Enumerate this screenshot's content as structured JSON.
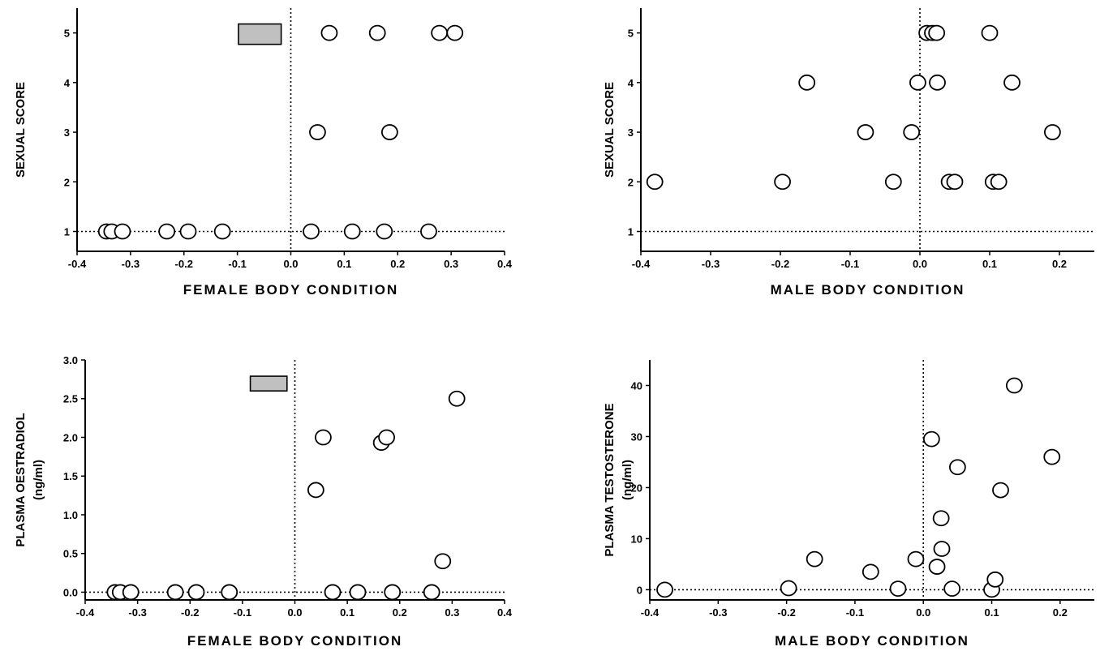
{
  "chart_data": [
    {
      "type": "scatter",
      "title": "",
      "xlabel": "FEMALE BODY CONDITION",
      "ylabel": [
        "SEXUAL SCORE"
      ],
      "xlim": [
        -0.4,
        0.4
      ],
      "ylim": [
        0.6,
        5.5
      ],
      "xticks": [
        -0.4,
        -0.3,
        -0.2,
        -0.1,
        0.0,
        0.1,
        0.2,
        0.3,
        0.4
      ],
      "xtick_labels": [
        "-0.4",
        "-0.3",
        "-0.2",
        "-0.1",
        "0.0",
        "0.1",
        "0.2",
        "0.3",
        "0.4"
      ],
      "yticks": [
        1,
        2,
        3,
        4,
        5
      ],
      "ytick_labels": [
        "1",
        "2",
        "3",
        "4",
        "5"
      ],
      "reference_lines": {
        "x": 0,
        "y": 1,
        "style": "dotted"
      },
      "marker_box": {
        "x": [
          -0.098,
          -0.018
        ],
        "y": [
          4.77,
          5.18
        ],
        "color": "#c0c0c0"
      },
      "points": [
        {
          "x": -0.345,
          "y": 1
        },
        {
          "x": -0.335,
          "y": 1
        },
        {
          "x": -0.315,
          "y": 1
        },
        {
          "x": -0.232,
          "y": 1
        },
        {
          "x": -0.192,
          "y": 1
        },
        {
          "x": -0.128,
          "y": 1
        },
        {
          "x": 0.038,
          "y": 1
        },
        {
          "x": 0.115,
          "y": 1
        },
        {
          "x": 0.175,
          "y": 1
        },
        {
          "x": 0.258,
          "y": 1
        },
        {
          "x": 0.05,
          "y": 3
        },
        {
          "x": 0.185,
          "y": 3
        },
        {
          "x": 0.072,
          "y": 5
        },
        {
          "x": 0.162,
          "y": 5
        },
        {
          "x": 0.278,
          "y": 5
        },
        {
          "x": 0.307,
          "y": 5
        }
      ]
    },
    {
      "type": "scatter",
      "title": "",
      "xlabel": "MALE BODY CONDITION",
      "ylabel": [
        "SEXUAL SCORE"
      ],
      "xlim": [
        -0.4,
        0.25
      ],
      "ylim": [
        0.6,
        5.5
      ],
      "xticks": [
        -0.4,
        -0.3,
        -0.2,
        -0.1,
        0.0,
        0.1,
        0.2
      ],
      "xtick_labels": [
        "-0.4",
        "-0.3",
        "-0.2",
        "-0.1",
        "0.0",
        "0.1",
        "0.2"
      ],
      "yticks": [
        1,
        2,
        3,
        4,
        5
      ],
      "ytick_labels": [
        "1",
        "2",
        "3",
        "4",
        "5"
      ],
      "reference_lines": {
        "x": 0,
        "y": 1,
        "style": "dotted"
      },
      "points": [
        {
          "x": 0.01,
          "y": 5
        },
        {
          "x": 0.018,
          "y": 5
        },
        {
          "x": 0.024,
          "y": 5
        },
        {
          "x": 0.1,
          "y": 5
        },
        {
          "x": -0.162,
          "y": 4
        },
        {
          "x": -0.003,
          "y": 4
        },
        {
          "x": 0.025,
          "y": 4
        },
        {
          "x": 0.132,
          "y": 4
        },
        {
          "x": -0.078,
          "y": 3
        },
        {
          "x": -0.012,
          "y": 3
        },
        {
          "x": 0.19,
          "y": 3
        },
        {
          "x": -0.38,
          "y": 2
        },
        {
          "x": -0.197,
          "y": 2
        },
        {
          "x": -0.038,
          "y": 2
        },
        {
          "x": 0.042,
          "y": 2
        },
        {
          "x": 0.05,
          "y": 2
        },
        {
          "x": 0.105,
          "y": 2
        },
        {
          "x": 0.113,
          "y": 2
        }
      ]
    },
    {
      "type": "scatter",
      "title": "",
      "xlabel": "FEMALE BODY CONDITION",
      "ylabel": [
        "PLASMA OESTRADIOL",
        "(ng/ml)"
      ],
      "xlim": [
        -0.4,
        0.4
      ],
      "ylim": [
        -0.1,
        3.0
      ],
      "xticks": [
        -0.4,
        -0.3,
        -0.2,
        -0.1,
        0.0,
        0.1,
        0.2,
        0.3,
        0.4
      ],
      "xtick_labels": [
        "-0.4",
        "-0.3",
        "-0.2",
        "-0.1",
        "0.0",
        "0.1",
        "0.2",
        "0.3",
        "0.4"
      ],
      "yticks": [
        0.0,
        0.5,
        1.0,
        1.5,
        2.0,
        2.5,
        3.0
      ],
      "ytick_labels": [
        "0.0",
        "0.5",
        "1.0",
        "1.5",
        "2.0",
        "2.5",
        "3.0"
      ],
      "reference_lines": {
        "x": 0,
        "y": 0,
        "style": "dotted"
      },
      "marker_box": {
        "x": [
          -0.085,
          -0.015
        ],
        "y": [
          2.6,
          2.79
        ],
        "color": "#c0c0c0"
      },
      "points": [
        {
          "x": -0.343,
          "y": 0
        },
        {
          "x": -0.333,
          "y": 0
        },
        {
          "x": -0.313,
          "y": 0
        },
        {
          "x": -0.228,
          "y": 0
        },
        {
          "x": -0.188,
          "y": 0
        },
        {
          "x": -0.125,
          "y": 0
        },
        {
          "x": 0.072,
          "y": 0
        },
        {
          "x": 0.12,
          "y": 0
        },
        {
          "x": 0.186,
          "y": 0
        },
        {
          "x": 0.261,
          "y": 0
        },
        {
          "x": 0.04,
          "y": 1.32
        },
        {
          "x": 0.054,
          "y": 2.0
        },
        {
          "x": 0.165,
          "y": 1.93
        },
        {
          "x": 0.175,
          "y": 2.0
        },
        {
          "x": 0.282,
          "y": 0.4
        },
        {
          "x": 0.309,
          "y": 2.5
        }
      ]
    },
    {
      "type": "scatter",
      "title": "",
      "xlabel": "MALE BODY CONDITION",
      "ylabel": [
        "PLASMA TESTOSTERONE",
        "(ng/ml)"
      ],
      "xlim": [
        -0.4,
        0.25
      ],
      "ylim": [
        -2,
        45
      ],
      "xticks": [
        -0.4,
        -0.3,
        -0.2,
        -0.1,
        0.0,
        0.1,
        0.2
      ],
      "xtick_labels": [
        "-0.4",
        "-0.3",
        "-0.2",
        "-0.1",
        "0.0",
        "0.1",
        "0.2"
      ],
      "yticks": [
        0,
        10,
        20,
        30,
        40
      ],
      "ytick_labels": [
        "0",
        "10",
        "20",
        "30",
        "40"
      ],
      "reference_lines": {
        "x": 0,
        "y": 0,
        "style": "dotted"
      },
      "points": [
        {
          "x": -0.378,
          "y": 0
        },
        {
          "x": -0.197,
          "y": 0.3
        },
        {
          "x": -0.159,
          "y": 6
        },
        {
          "x": -0.077,
          "y": 3.5
        },
        {
          "x": -0.037,
          "y": 0.2
        },
        {
          "x": -0.011,
          "y": 6
        },
        {
          "x": 0.012,
          "y": 29.5
        },
        {
          "x": 0.02,
          "y": 4.5
        },
        {
          "x": 0.026,
          "y": 14
        },
        {
          "x": 0.027,
          "y": 8
        },
        {
          "x": 0.042,
          "y": 0.2
        },
        {
          "x": 0.05,
          "y": 24
        },
        {
          "x": 0.1,
          "y": 0
        },
        {
          "x": 0.105,
          "y": 2
        },
        {
          "x": 0.113,
          "y": 19.5
        },
        {
          "x": 0.133,
          "y": 40
        },
        {
          "x": 0.188,
          "y": 26
        }
      ]
    }
  ]
}
